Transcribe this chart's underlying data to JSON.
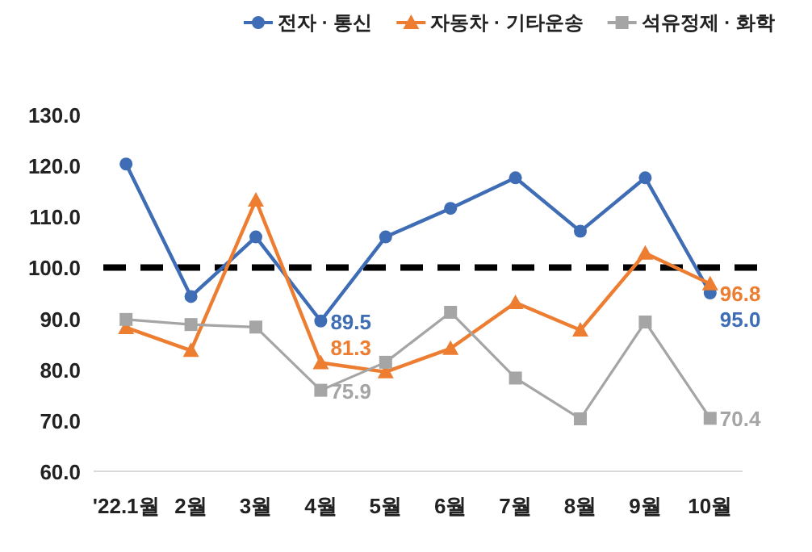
{
  "chart_data": {
    "type": "line",
    "categories": [
      "'22.1월",
      "2월",
      "3월",
      "4월",
      "5월",
      "6월",
      "7월",
      "8월",
      "9월",
      "10월"
    ],
    "series": [
      {
        "name": "전자 · 통신",
        "color": "#3f6db5",
        "marker": "circle",
        "values": [
          120.3,
          94.3,
          106.0,
          89.5,
          106.0,
          111.6,
          117.6,
          107.1,
          117.6,
          95.0
        ],
        "value_labels": [
          null,
          null,
          null,
          "89.5",
          null,
          null,
          null,
          null,
          null,
          "95.0"
        ]
      },
      {
        "name": "자동차 · 기타운송",
        "color": "#ed7d31",
        "marker": "triangle",
        "values": [
          88.2,
          83.7,
          113.2,
          81.3,
          79.5,
          84.1,
          93.1,
          87.7,
          102.8,
          96.8
        ],
        "value_labels": [
          null,
          null,
          null,
          "81.3",
          null,
          null,
          null,
          null,
          null,
          "96.8"
        ]
      },
      {
        "name": "석유정제 · 화학",
        "color": "#a5a5a5",
        "marker": "square",
        "values": [
          89.8,
          88.8,
          88.3,
          75.9,
          81.4,
          91.2,
          78.3,
          70.3,
          89.3,
          70.4
        ],
        "value_labels": [
          null,
          null,
          null,
          "75.9",
          null,
          null,
          null,
          null,
          null,
          "70.4"
        ]
      }
    ],
    "ylim": [
      60,
      130
    ],
    "yticks": [
      {
        "value": 60,
        "label": "60.0"
      },
      {
        "value": 70,
        "label": "70.0"
      },
      {
        "value": 80,
        "label": "80.0"
      },
      {
        "value": 90,
        "label": "90.0"
      },
      {
        "value": 100,
        "label": "100.0"
      },
      {
        "value": 110,
        "label": "110.0"
      },
      {
        "value": 120,
        "label": "120.0"
      },
      {
        "value": 130,
        "label": "130.0"
      }
    ],
    "ref_lines": [
      {
        "axis": "y",
        "value": 100,
        "color": "#000000",
        "line_style": "dashed"
      }
    ],
    "legend": "top right"
  }
}
